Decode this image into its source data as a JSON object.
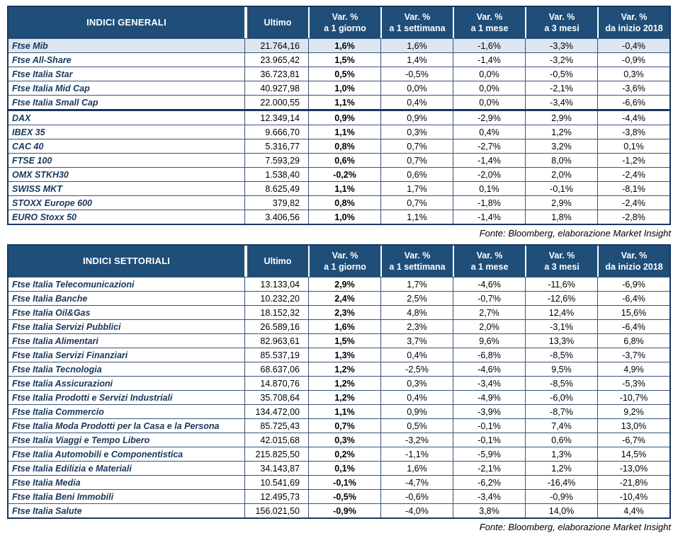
{
  "colors": {
    "header_bg": "#1F4E79",
    "border_dark": "#17375E",
    "highlight_bg": "#DCE6F1",
    "label_color": "#17375E"
  },
  "chart_data": [
    {
      "type": "table",
      "title": "INDICI GENERALI",
      "headers": [
        {
          "top": "Ultimo",
          "bottom": ""
        },
        {
          "top": "Var. %",
          "bottom": "a 1 giorno"
        },
        {
          "top": "Var. %",
          "bottom": "a 1 settimana"
        },
        {
          "top": "Var. %",
          "bottom": "a 1 mese"
        },
        {
          "top": "Var. %",
          "bottom": "a 3 mesi"
        },
        {
          "top": "Var. %",
          "bottom": "da inizio 2018"
        }
      ],
      "groups": [
        {
          "rows": [
            {
              "label": "Ftse Mib",
              "highlight": true,
              "values": [
                "21.764,16",
                "1,6%",
                "1,6%",
                "-1,6%",
                "-3,3%",
                "-0,4%"
              ]
            },
            {
              "label": "Ftse All-Share",
              "values": [
                "23.965,42",
                "1,5%",
                "1,4%",
                "-1,4%",
                "-3,2%",
                "-0,9%"
              ]
            },
            {
              "label": "Ftse Italia Star",
              "values": [
                "36.723,81",
                "0,5%",
                "-0,5%",
                "0,0%",
                "-0,5%",
                "0,3%"
              ]
            },
            {
              "label": "Ftse Italia Mid Cap",
              "values": [
                "40.927,98",
                "1,0%",
                "0,0%",
                "0,0%",
                "-2,1%",
                "-3,6%"
              ]
            },
            {
              "label": "Ftse Italia Small Cap",
              "values": [
                "22.000,55",
                "1,1%",
                "0,4%",
                "0,0%",
                "-3,4%",
                "-6,6%"
              ]
            }
          ]
        },
        {
          "rows": [
            {
              "label": "DAX",
              "values": [
                "12.349,14",
                "0,9%",
                "0,9%",
                "-2,9%",
                "2,9%",
                "-4,4%"
              ]
            },
            {
              "label": "IBEX 35",
              "values": [
                "9.666,70",
                "1,1%",
                "0,3%",
                "0,4%",
                "1,2%",
                "-3,8%"
              ]
            },
            {
              "label": "CAC 40",
              "values": [
                "5.316,77",
                "0,8%",
                "0,7%",
                "-2,7%",
                "3,2%",
                "0,1%"
              ]
            },
            {
              "label": "FTSE 100",
              "values": [
                "7.593,29",
                "0,6%",
                "0,7%",
                "-1,4%",
                "8,0%",
                "-1,2%"
              ]
            },
            {
              "label": "OMX STKH30",
              "values": [
                "1.538,40",
                "-0,2%",
                "0,6%",
                "-2,0%",
                "2,0%",
                "-2,4%"
              ]
            },
            {
              "label": "SWISS MKT",
              "values": [
                "8.625,49",
                "1,1%",
                "1,7%",
                "0,1%",
                "-0,1%",
                "-8,1%"
              ]
            },
            {
              "label": "STOXX Europe 600",
              "values": [
                "379,82",
                "0,8%",
                "0,7%",
                "-1,8%",
                "2,9%",
                "-2,4%"
              ]
            },
            {
              "label": "EURO Stoxx 50",
              "values": [
                "3.406,56",
                "1,0%",
                "1,1%",
                "-1,4%",
                "1,8%",
                "-2,8%"
              ]
            }
          ]
        }
      ],
      "source": "Fonte: Bloomberg, elaborazione Market Insight"
    },
    {
      "type": "table",
      "title": "INDICI SETTORIALI",
      "headers": [
        {
          "top": "Ultimo",
          "bottom": ""
        },
        {
          "top": "Var. %",
          "bottom": "a 1 giorno"
        },
        {
          "top": "Var. %",
          "bottom": "a 1 settimana"
        },
        {
          "top": "Var. %",
          "bottom": "a 1 mese"
        },
        {
          "top": "Var. %",
          "bottom": "a 3 mesi"
        },
        {
          "top": "Var. %",
          "bottom": "da inizio 2018"
        }
      ],
      "groups": [
        {
          "rows": [
            {
              "label": "Ftse Italia Telecomunicazioni",
              "values": [
                "13.133,04",
                "2,9%",
                "1,7%",
                "-4,6%",
                "-11,6%",
                "-6,9%"
              ]
            },
            {
              "label": "Ftse Italia Banche",
              "values": [
                "10.232,20",
                "2,4%",
                "2,5%",
                "-0,7%",
                "-12,6%",
                "-6,4%"
              ]
            },
            {
              "label": "Ftse Italia Oil&Gas",
              "values": [
                "18.152,32",
                "2,3%",
                "4,8%",
                "2,7%",
                "12,4%",
                "15,6%"
              ]
            },
            {
              "label": "Ftse Italia Servizi Pubblici",
              "values": [
                "26.589,16",
                "1,6%",
                "2,3%",
                "2,0%",
                "-3,1%",
                "-6,4%"
              ]
            },
            {
              "label": "Ftse Italia Alimentari",
              "values": [
                "82.963,61",
                "1,5%",
                "3,7%",
                "9,6%",
                "13,3%",
                "6,8%"
              ]
            },
            {
              "label": "Ftse Italia Servizi Finanziari",
              "values": [
                "85.537,19",
                "1,3%",
                "0,4%",
                "-6,8%",
                "-8,5%",
                "-3,7%"
              ]
            },
            {
              "label": "Ftse Italia Tecnologia",
              "values": [
                "68.637,06",
                "1,2%",
                "-2,5%",
                "-4,6%",
                "9,5%",
                "4,9%"
              ]
            },
            {
              "label": "Ftse Italia Assicurazioni",
              "values": [
                "14.870,76",
                "1,2%",
                "0,3%",
                "-3,4%",
                "-8,5%",
                "-5,3%"
              ]
            },
            {
              "label": "Ftse Italia Prodotti e Servizi Industriali",
              "values": [
                "35.708,64",
                "1,2%",
                "0,4%",
                "-4,9%",
                "-6,0%",
                "-10,7%"
              ]
            },
            {
              "label": "Ftse Italia Commercio",
              "values": [
                "134.472,00",
                "1,1%",
                "0,9%",
                "-3,9%",
                "-8,7%",
                "9,2%"
              ]
            },
            {
              "label": "Ftse Italia Moda Prodotti per la Casa e la Persona",
              "values": [
                "85.725,43",
                "0,7%",
                "0,5%",
                "-0,1%",
                "7,4%",
                "13,0%"
              ]
            },
            {
              "label": "Ftse Italia Viaggi e Tempo Libero",
              "values": [
                "42.015,68",
                "0,3%",
                "-3,2%",
                "-0,1%",
                "0,6%",
                "-6,7%"
              ]
            },
            {
              "label": "Ftse Italia Automobili e Componentistica",
              "values": [
                "215.825,50",
                "0,2%",
                "-1,1%",
                "-5,9%",
                "1,3%",
                "14,5%"
              ]
            },
            {
              "label": "Ftse Italia Edilizia e Materiali",
              "values": [
                "34.143,87",
                "0,1%",
                "1,6%",
                "-2,1%",
                "1,2%",
                "-13,0%"
              ]
            },
            {
              "label": "Ftse Italia Media",
              "values": [
                "10.541,69",
                "-0,1%",
                "-4,7%",
                "-6,2%",
                "-16,4%",
                "-21,8%"
              ]
            },
            {
              "label": "Ftse Italia Beni Immobili",
              "values": [
                "12.495,73",
                "-0,5%",
                "-0,6%",
                "-3,4%",
                "-0,9%",
                "-10,4%"
              ]
            },
            {
              "label": "Ftse Italia Salute",
              "values": [
                "156.021,50",
                "-0,9%",
                "-4,0%",
                "3,8%",
                "14,0%",
                "4,4%"
              ]
            }
          ]
        }
      ],
      "source": "Fonte: Bloomberg, elaborazione Market Insight"
    }
  ]
}
